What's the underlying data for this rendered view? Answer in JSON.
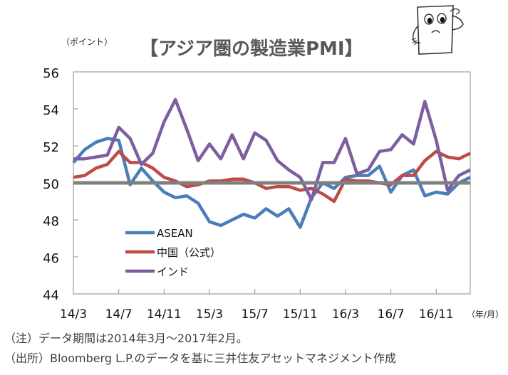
{
  "header": {
    "unit_label": "（ポイント）",
    "title": "【アジア圏の製造業PMI】"
  },
  "mascot": {
    "icon": "worried-document-character-icon"
  },
  "chart_data": {
    "type": "line",
    "title": "【アジア圏の製造業PMI】",
    "ylabel": "（ポイント）",
    "xlabel": "（年/月）",
    "ylim": [
      44,
      56
    ],
    "yticks": [
      44,
      46,
      48,
      50,
      52,
      54,
      56
    ],
    "reference_line": 50,
    "grid": false,
    "legend_position": "bottom-left",
    "x": [
      "14/3",
      "14/4",
      "14/5",
      "14/6",
      "14/7",
      "14/8",
      "14/9",
      "14/10",
      "14/11",
      "14/12",
      "15/1",
      "15/2",
      "15/3",
      "15/4",
      "15/5",
      "15/6",
      "15/7",
      "15/8",
      "15/9",
      "15/10",
      "15/11",
      "15/12",
      "16/1",
      "16/2",
      "16/3",
      "16/4",
      "16/5",
      "16/6",
      "16/7",
      "16/8",
      "16/9",
      "16/10",
      "16/11",
      "16/12",
      "17/1",
      "17/2"
    ],
    "xtick_labels": [
      "14/3",
      "14/7",
      "14/11",
      "15/3",
      "15/7",
      "15/11",
      "16/3",
      "16/7",
      "16/11"
    ],
    "series": [
      {
        "name": "ASEAN",
        "color": "#4a7ebb",
        "values": [
          51.1,
          51.8,
          52.2,
          52.4,
          52.3,
          49.9,
          50.8,
          50.1,
          49.5,
          49.2,
          49.3,
          48.9,
          47.9,
          47.7,
          48.0,
          48.3,
          48.1,
          48.6,
          48.2,
          48.6,
          47.6,
          49.2,
          50.0,
          49.7,
          50.3,
          50.4,
          50.4,
          50.9,
          49.5,
          50.4,
          50.7,
          49.3,
          49.5,
          49.4,
          50.0,
          50.3
        ]
      },
      {
        "name": "中国（公式）",
        "color": "#be4b48",
        "values": [
          50.3,
          50.4,
          50.8,
          51.0,
          51.7,
          51.1,
          51.1,
          50.8,
          50.3,
          50.1,
          49.8,
          49.9,
          50.1,
          50.1,
          50.2,
          50.2,
          50.0,
          49.7,
          49.8,
          49.8,
          49.6,
          49.7,
          49.4,
          49.0,
          50.2,
          50.1,
          50.1,
          50.0,
          49.9,
          50.4,
          50.4,
          51.2,
          51.7,
          51.4,
          51.3,
          51.6
        ]
      },
      {
        "name": "インド",
        "color": "#7d5fa0",
        "values": [
          51.3,
          51.3,
          51.4,
          51.5,
          53.0,
          52.4,
          51.0,
          51.6,
          53.3,
          54.5,
          52.9,
          51.2,
          52.1,
          51.3,
          52.6,
          51.3,
          52.7,
          52.3,
          51.2,
          50.7,
          50.3,
          49.1,
          51.1,
          51.1,
          52.4,
          50.5,
          50.7,
          51.7,
          51.8,
          52.6,
          52.1,
          54.4,
          52.3,
          49.6,
          50.4,
          50.7
        ]
      }
    ]
  },
  "notes": {
    "period": "（注）データ期間は2014年3月～2017年2月。",
    "source": "（出所）Bloomberg L.P.のデータを基に三井住友アセットマネジメント作成"
  }
}
